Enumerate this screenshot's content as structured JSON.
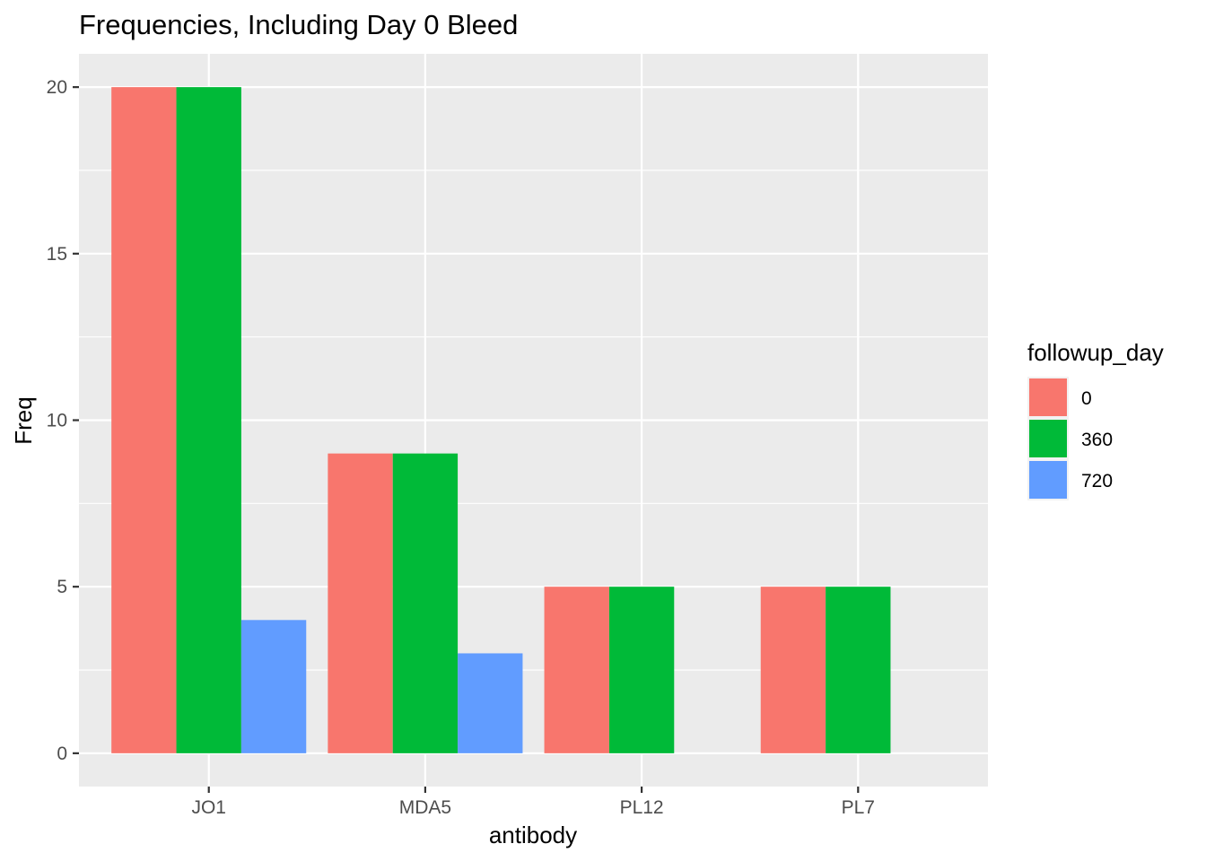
{
  "chart_data": {
    "type": "bar",
    "title": "Frequencies, Including Day 0 Bleed",
    "xlabel": "antibody",
    "ylabel": "Freq",
    "categories": [
      "JO1",
      "MDA5",
      "PL12",
      "PL7"
    ],
    "series": [
      {
        "name": "0",
        "values": [
          20,
          9,
          5,
          5
        ],
        "color": "#F8766D"
      },
      {
        "name": "360",
        "values": [
          20,
          9,
          5,
          5
        ],
        "color": "#00BA38"
      },
      {
        "name": "720",
        "values": [
          4,
          3,
          null,
          null
        ],
        "color": "#619CFF"
      }
    ],
    "ylim": [
      -1,
      21
    ],
    "yticks": [
      0,
      5,
      10,
      15,
      20
    ],
    "grid": true,
    "panel_background": "#EBEBEB",
    "legend": {
      "title": "followup_day",
      "position": "right"
    }
  }
}
